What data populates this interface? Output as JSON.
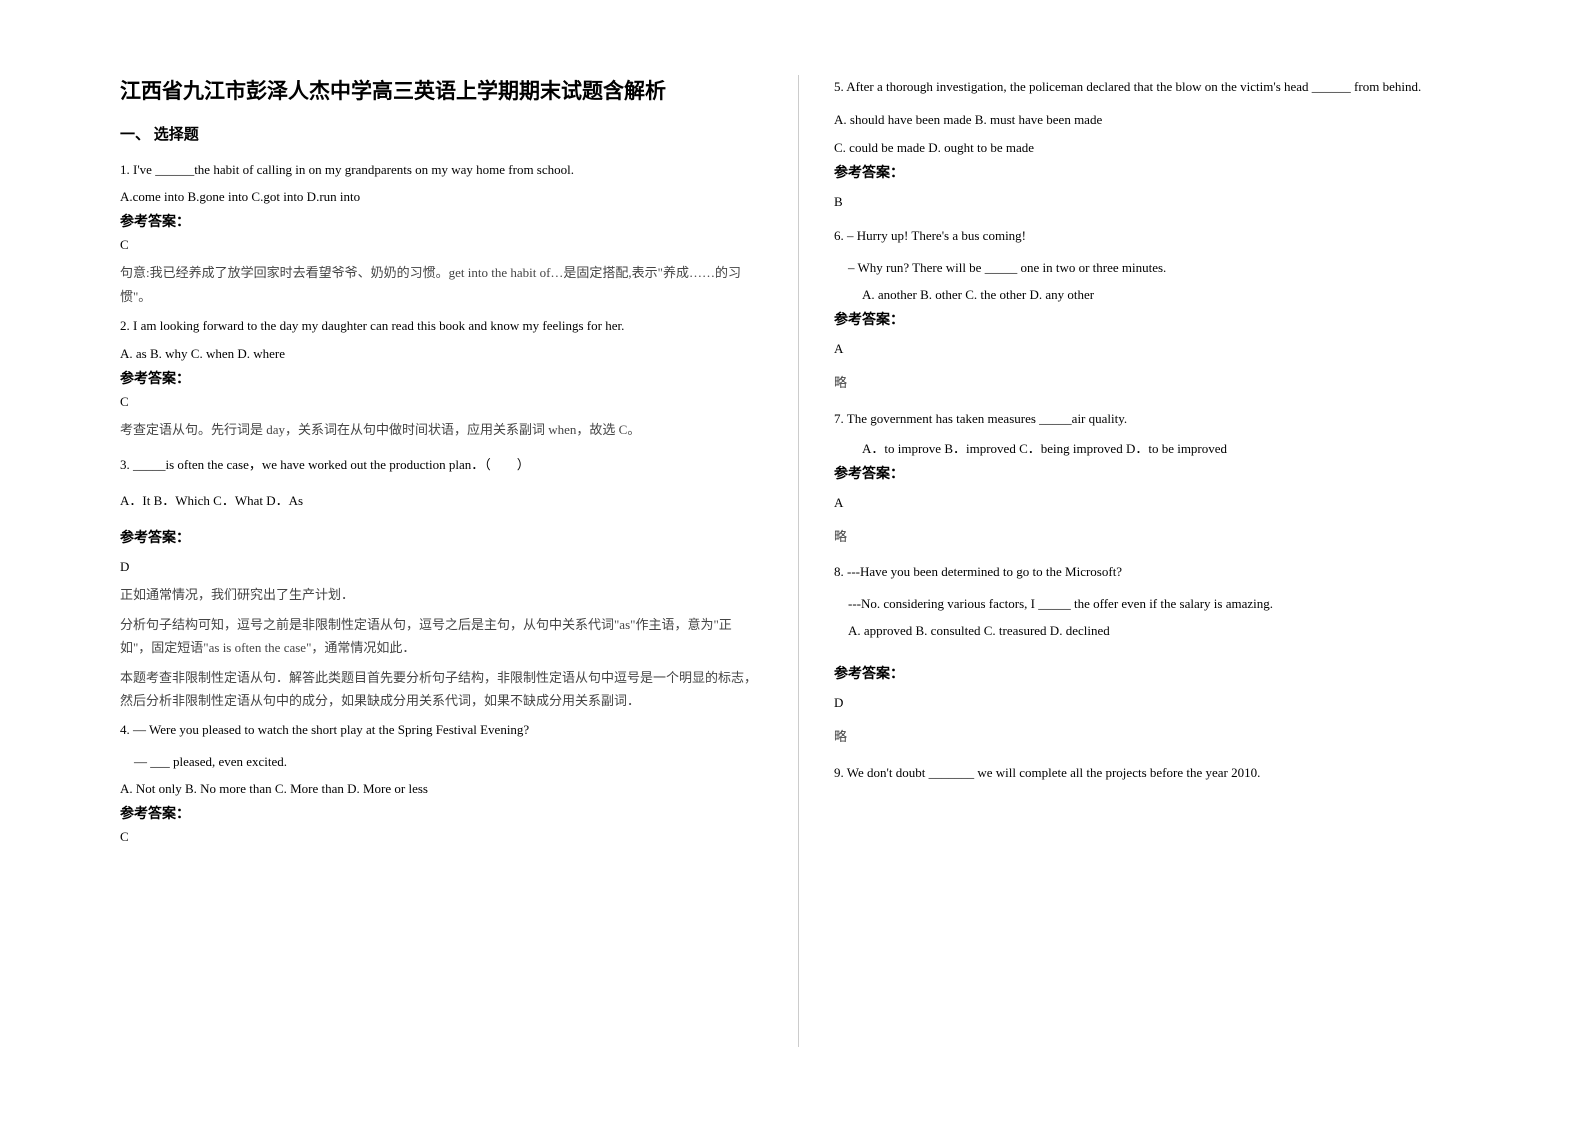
{
  "title": "江西省九江市彭泽人杰中学高三英语上学期期末试题含解析",
  "sectionHeader": "一、 选择题",
  "answerLabel": "参考答案：",
  "left": {
    "q1": {
      "stem": "1. I've ______the habit of calling in on my grandparents on my way home from school.",
      "opts": "A.come into      B.gone into      C.got into           D.run into",
      "ans": "C",
      "expl": "句意:我已经养成了放学回家时去看望爷爷、奶奶的习惯。get into the habit of…是固定搭配,表示\"养成……的习惯\"。"
    },
    "q2": {
      "stem": "2. I am looking forward to the day                 my daughter can read this book and know my feelings for her.",
      "opts": "A. as      B. why   C. when             D. where",
      "ans": "C",
      "expl": "考查定语从句。先行词是 day，关系词在从句中做时间状语，应用关系副词 when，故选 C。"
    },
    "q3": {
      "stem": "3. _____is often the case，we have worked out the production plan．（　　）",
      "opts": "A．It    B．Which        C．What           D．As",
      "ans": "D",
      "expl1": "正如通常情况，我们研究出了生产计划．",
      "expl2": "分析句子结构可知，逗号之前是非限制性定语从句，逗号之后是主句，从句中关系代词\"as\"作主语，意为\"正如\"，固定短语\"as is often the case\"，通常情况如此．",
      "expl3": "本题考查非限制性定语从句．解答此类题目首先要分析句子结构，非限制性定语从句中逗号是一个明显的标志，然后分析非限制性定语从句中的成分，如果缺成分用关系代词，如果不缺成分用关系副词．"
    },
    "q4": {
      "stem1": "4.  — Were you pleased to watch the short play at the Spring Festival Evening?",
      "stem2": "— ___ pleased, even excited.",
      "opts": "A. Not only        B. No more than       C. More than           D. More or less",
      "ans": "C"
    }
  },
  "right": {
    "q5": {
      "stem": "5. After a thorough investigation, the policeman declared that the blow on the victim's head ______ from behind.",
      "opt1": "A. should have been made       B. must have been made",
      "opt2": "C. could be made              D. ought to be made",
      "ans": "B"
    },
    "q6": {
      "stem1": "6. – Hurry up! There's a bus coming!",
      "stem2": "– Why run? There will be _____ one in two or three minutes.",
      "opts": "A. another               B.  other               C. the other               D. any other",
      "ans": "A",
      "expl": "略"
    },
    "q7": {
      "stem": "7. The government has taken measures _____air quality.",
      "opts": "A．to improve             B．improved                  C．being improved     D．to be improved",
      "ans": "A",
      "expl": "略"
    },
    "q8": {
      "stem1": "8. ---Have you been determined to go to the Microsoft?",
      "stem2": "---No. considering various factors, I _____ the offer even if the salary is amazing.",
      "opts": "A. approved     B. consulted    C. treasured    D. declined",
      "ans": "D",
      "expl": "略"
    },
    "q9": {
      "stem": "9. We don't doubt _______ we will complete all the projects before the year 2010."
    }
  }
}
